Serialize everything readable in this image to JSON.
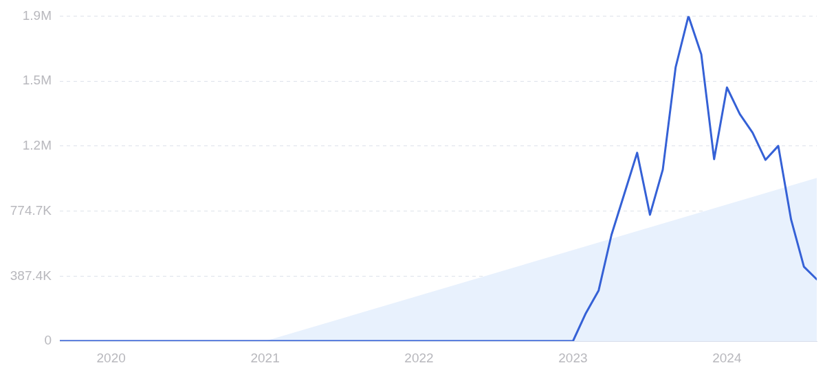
{
  "chart_data": {
    "type": "line",
    "series": [
      {
        "type": "area",
        "color": "#e8f1fd",
        "x": [
          "2021-01",
          "2024-08"
        ],
        "values": [
          0,
          972000
        ]
      },
      {
        "type": "line",
        "color": "#3561d6",
        "x": [
          "2019-09",
          "2023-01",
          "2023-02",
          "2023-03",
          "2023-04",
          "2023-05",
          "2023-06",
          "2023-07",
          "2023-08",
          "2023-09",
          "2023-10",
          "2023-11",
          "2023-12",
          "2024-01",
          "2024-02",
          "2024-03",
          "2024-04",
          "2024-05",
          "2024-06",
          "2024-07",
          "2024-08"
        ],
        "values": [
          0,
          0,
          166000,
          302000,
          633000,
          877000,
          1122000,
          753000,
          1022000,
          1631000,
          1936800,
          1709000,
          1084000,
          1511000,
          1353000,
          1242000,
          1080000,
          1163000,
          724000,
          443000,
          368000
        ]
      }
    ],
    "xlim": [
      "2019-09",
      "2024-08"
    ],
    "xticks": [
      "2020",
      "2021",
      "2022",
      "2023",
      "2024"
    ],
    "ylim": [
      0,
      1936800
    ],
    "yticks": [
      0,
      {
        "value": 387400,
        "label": "387.4K"
      },
      {
        "value": 774700,
        "label": "774.7K"
      },
      {
        "value": 1162100,
        "label": "1.2M"
      },
      {
        "value": 1549400,
        "label": "1.5M"
      },
      {
        "value": 1936800,
        "label": "1.9M"
      }
    ],
    "grid": "y",
    "legend": false,
    "marker": "none",
    "line_style": "solid"
  }
}
